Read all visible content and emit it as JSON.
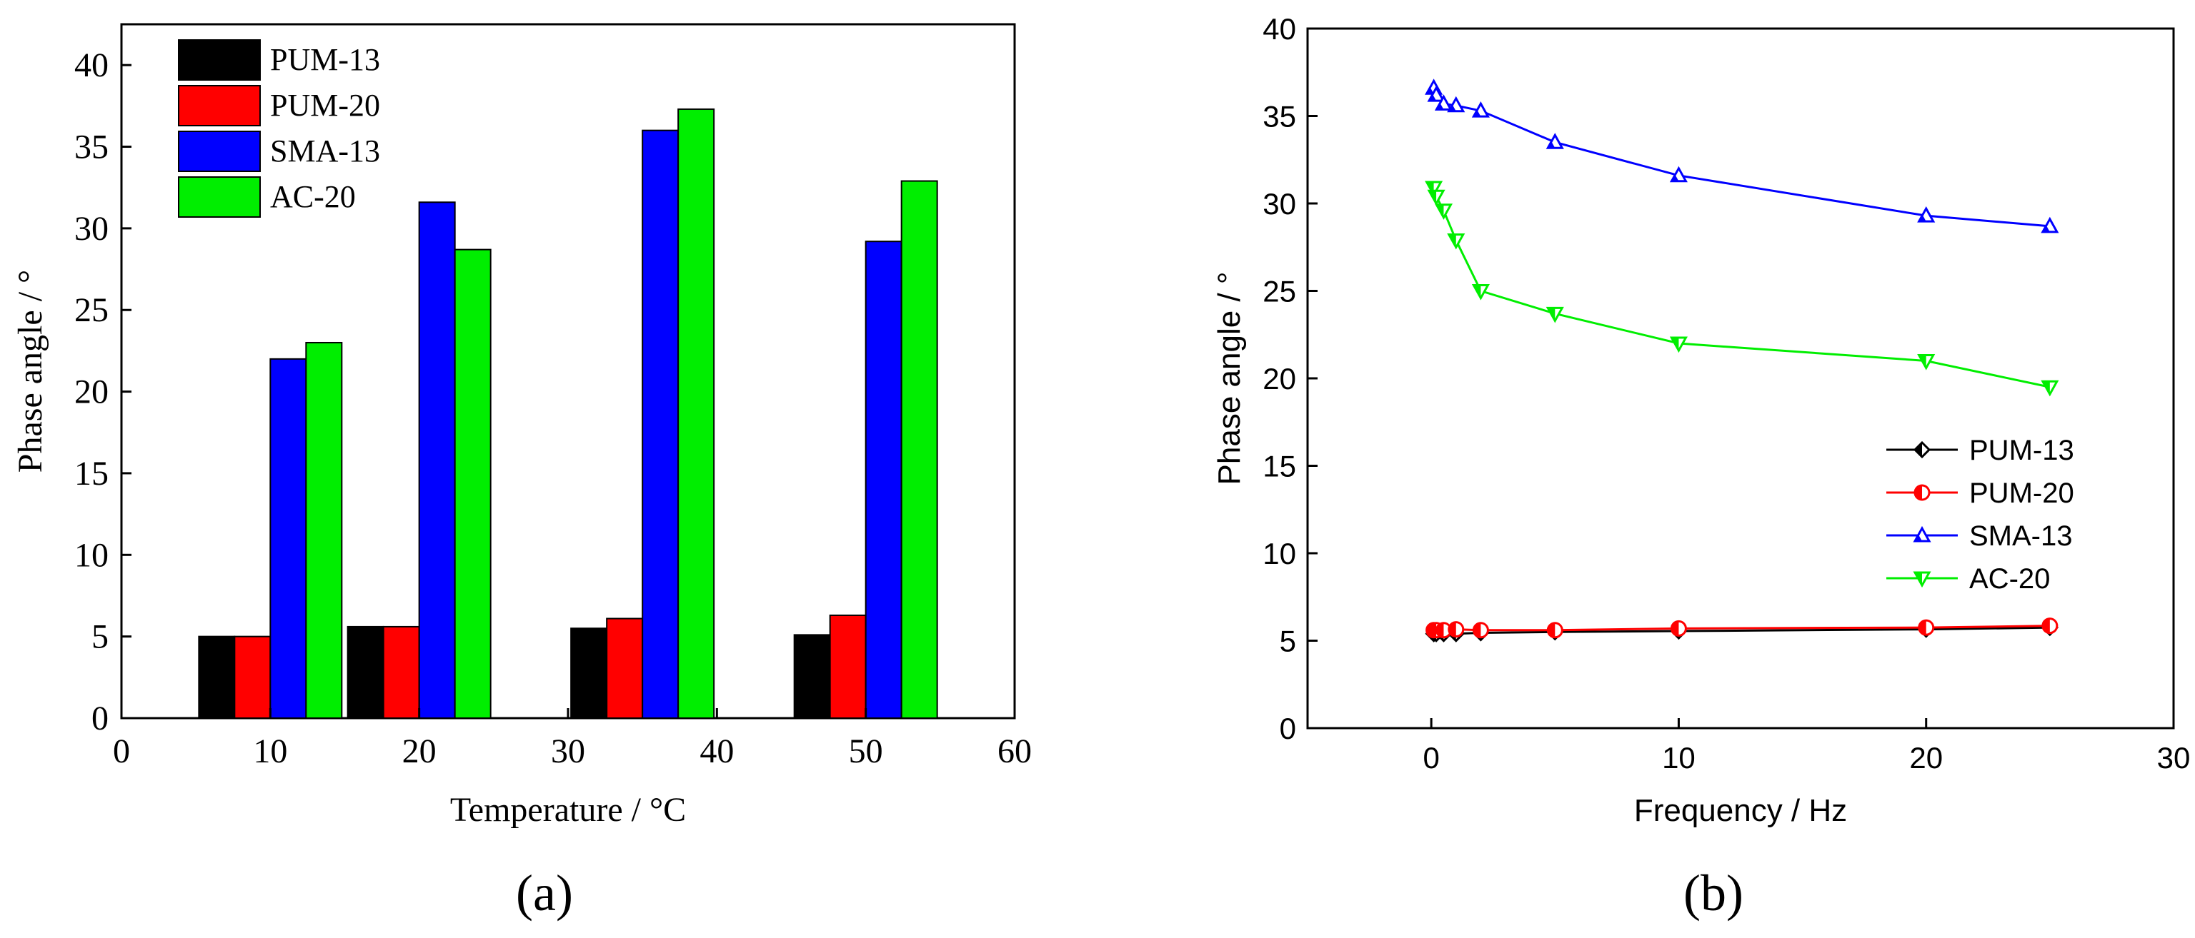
{
  "chart_data": [
    {
      "type": "bar",
      "panel_label": "(a)",
      "xlabel": "Temperature / °C",
      "ylabel": "Phase angle / °",
      "xlim": [
        0,
        60
      ],
      "ylim": [
        0,
        42.5
      ],
      "xticks": [
        0,
        10,
        20,
        30,
        40,
        50,
        60
      ],
      "yticks": [
        0,
        5,
        10,
        15,
        20,
        25,
        30,
        35,
        40
      ],
      "categories": [
        10,
        20,
        35,
        50
      ],
      "legend_position": "top-left",
      "series": [
        {
          "name": "PUM-13",
          "color": "#000000",
          "values": [
            5.0,
            5.6,
            5.5,
            5.1
          ]
        },
        {
          "name": "PUM-20",
          "color": "#ff0000",
          "values": [
            5.0,
            5.6,
            6.1,
            6.3
          ]
        },
        {
          "name": "SMA-13",
          "color": "#0000ff",
          "values": [
            22.0,
            31.6,
            36.0,
            29.2
          ]
        },
        {
          "name": "AC-20",
          "color": "#00ee00",
          "values": [
            23.0,
            28.7,
            37.3,
            32.9
          ]
        }
      ]
    },
    {
      "type": "line",
      "panel_label": "(b)",
      "xlabel": "Frequency / Hz",
      "ylabel": "Phase angle / °",
      "xlim": [
        -5,
        30
      ],
      "ylim": [
        0,
        40
      ],
      "xticks": [
        0,
        10,
        20,
        30
      ],
      "yticks": [
        0,
        5,
        10,
        15,
        20,
        25,
        30,
        35,
        40
      ],
      "legend_position": "lower-right",
      "series": [
        {
          "name": "PUM-13",
          "color": "#000000",
          "marker": "diamond-half",
          "x": [
            0.1,
            0.2,
            0.5,
            1,
            2,
            5,
            10,
            20,
            25
          ],
          "y": [
            5.4,
            5.4,
            5.4,
            5.4,
            5.45,
            5.5,
            5.55,
            5.65,
            5.75
          ]
        },
        {
          "name": "PUM-20",
          "color": "#ff0000",
          "marker": "circle-half",
          "x": [
            0.1,
            0.2,
            0.5,
            1,
            2,
            5,
            10,
            20,
            25
          ],
          "y": [
            5.6,
            5.6,
            5.6,
            5.65,
            5.6,
            5.6,
            5.7,
            5.75,
            5.85
          ]
        },
        {
          "name": "SMA-13",
          "color": "#0000ff",
          "marker": "triangle-up",
          "x": [
            0.1,
            0.2,
            0.5,
            1,
            2,
            5,
            10,
            20,
            25
          ],
          "y": [
            36.6,
            36.2,
            35.7,
            35.6,
            35.3,
            33.5,
            31.6,
            29.3,
            28.7
          ]
        },
        {
          "name": "AC-20",
          "color": "#00ee00",
          "marker": "triangle-down",
          "x": [
            0.1,
            0.2,
            0.5,
            1,
            2,
            5,
            10,
            20,
            25
          ],
          "y": [
            30.9,
            30.4,
            29.6,
            27.9,
            25.0,
            23.7,
            22.0,
            21.0,
            19.5
          ]
        }
      ]
    }
  ]
}
